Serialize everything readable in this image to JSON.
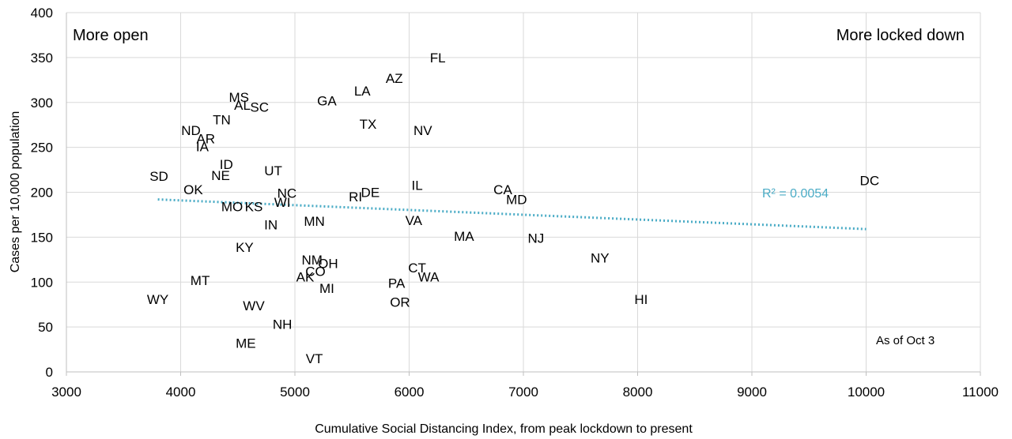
{
  "chart_data": {
    "type": "scatter",
    "xlabel": "Cumulative Social Distancing Index, from peak lockdown to present",
    "ylabel": "Cases per 10,000 population",
    "xlim": [
      3000,
      11000
    ],
    "ylim": [
      0,
      400
    ],
    "x_ticks": [
      "3000",
      "4000",
      "5000",
      "6000",
      "7000",
      "8000",
      "9000",
      "10000",
      "11000"
    ],
    "y_ticks": [
      "0",
      "50",
      "100",
      "150",
      "200",
      "250",
      "300",
      "350",
      "400"
    ],
    "grid": true,
    "annotations": {
      "left": "More open",
      "right": "More locked down",
      "date_note": "As of Oct 3",
      "r_squared": "R² = 0.0054"
    },
    "trendline": {
      "type": "linear",
      "x": [
        3800,
        10000
      ],
      "y": [
        192,
        159
      ],
      "color": "#4bacc6"
    },
    "points": [
      {
        "label": "FL",
        "x": 6250,
        "y": 350
      },
      {
        "label": "AZ",
        "x": 5870,
        "y": 327
      },
      {
        "label": "LA",
        "x": 5590,
        "y": 313
      },
      {
        "label": "GA",
        "x": 5280,
        "y": 302
      },
      {
        "label": "MS",
        "x": 4510,
        "y": 306
      },
      {
        "label": "AL",
        "x": 4540,
        "y": 297
      },
      {
        "label": "SC",
        "x": 4690,
        "y": 295
      },
      {
        "label": "TX",
        "x": 5640,
        "y": 276
      },
      {
        "label": "NV",
        "x": 6120,
        "y": 269
      },
      {
        "label": "TN",
        "x": 4360,
        "y": 281
      },
      {
        "label": "ND",
        "x": 4090,
        "y": 269
      },
      {
        "label": "AR",
        "x": 4220,
        "y": 260
      },
      {
        "label": "IA",
        "x": 4190,
        "y": 251
      },
      {
        "label": "ID",
        "x": 4400,
        "y": 231
      },
      {
        "label": "NE",
        "x": 4350,
        "y": 219
      },
      {
        "label": "UT",
        "x": 4810,
        "y": 224
      },
      {
        "label": "SD",
        "x": 3810,
        "y": 218
      },
      {
        "label": "OK",
        "x": 4110,
        "y": 203
      },
      {
        "label": "NC",
        "x": 4930,
        "y": 199
      },
      {
        "label": "WI",
        "x": 4890,
        "y": 189
      },
      {
        "label": "MO",
        "x": 4450,
        "y": 184
      },
      {
        "label": "KS",
        "x": 4640,
        "y": 184
      },
      {
        "label": "RI",
        "x": 5530,
        "y": 195
      },
      {
        "label": "DE",
        "x": 5660,
        "y": 200
      },
      {
        "label": "IL",
        "x": 6070,
        "y": 208
      },
      {
        "label": "CA",
        "x": 6820,
        "y": 203
      },
      {
        "label": "MD",
        "x": 6940,
        "y": 192
      },
      {
        "label": "DC",
        "x": 10030,
        "y": 213
      },
      {
        "label": "IN",
        "x": 4790,
        "y": 164
      },
      {
        "label": "MN",
        "x": 5170,
        "y": 168
      },
      {
        "label": "VA",
        "x": 6040,
        "y": 169
      },
      {
        "label": "MA",
        "x": 6480,
        "y": 151
      },
      {
        "label": "NJ",
        "x": 7110,
        "y": 149
      },
      {
        "label": "KY",
        "x": 4560,
        "y": 139
      },
      {
        "label": "NM",
        "x": 5150,
        "y": 125
      },
      {
        "label": "OH",
        "x": 5290,
        "y": 121
      },
      {
        "label": "CO",
        "x": 5180,
        "y": 112
      },
      {
        "label": "AK",
        "x": 5090,
        "y": 106
      },
      {
        "label": "CT",
        "x": 6070,
        "y": 116
      },
      {
        "label": "WA",
        "x": 6170,
        "y": 106
      },
      {
        "label": "NY",
        "x": 7670,
        "y": 127
      },
      {
        "label": "MT",
        "x": 4170,
        "y": 102
      },
      {
        "label": "PA",
        "x": 5890,
        "y": 99
      },
      {
        "label": "MI",
        "x": 5280,
        "y": 93
      },
      {
        "label": "WY",
        "x": 3800,
        "y": 81
      },
      {
        "label": "WV",
        "x": 4640,
        "y": 74
      },
      {
        "label": "OR",
        "x": 5920,
        "y": 78
      },
      {
        "label": "HI",
        "x": 8030,
        "y": 81
      },
      {
        "label": "NH",
        "x": 4890,
        "y": 53
      },
      {
        "label": "ME",
        "x": 4570,
        "y": 32
      },
      {
        "label": "VT",
        "x": 5170,
        "y": 15
      }
    ]
  }
}
